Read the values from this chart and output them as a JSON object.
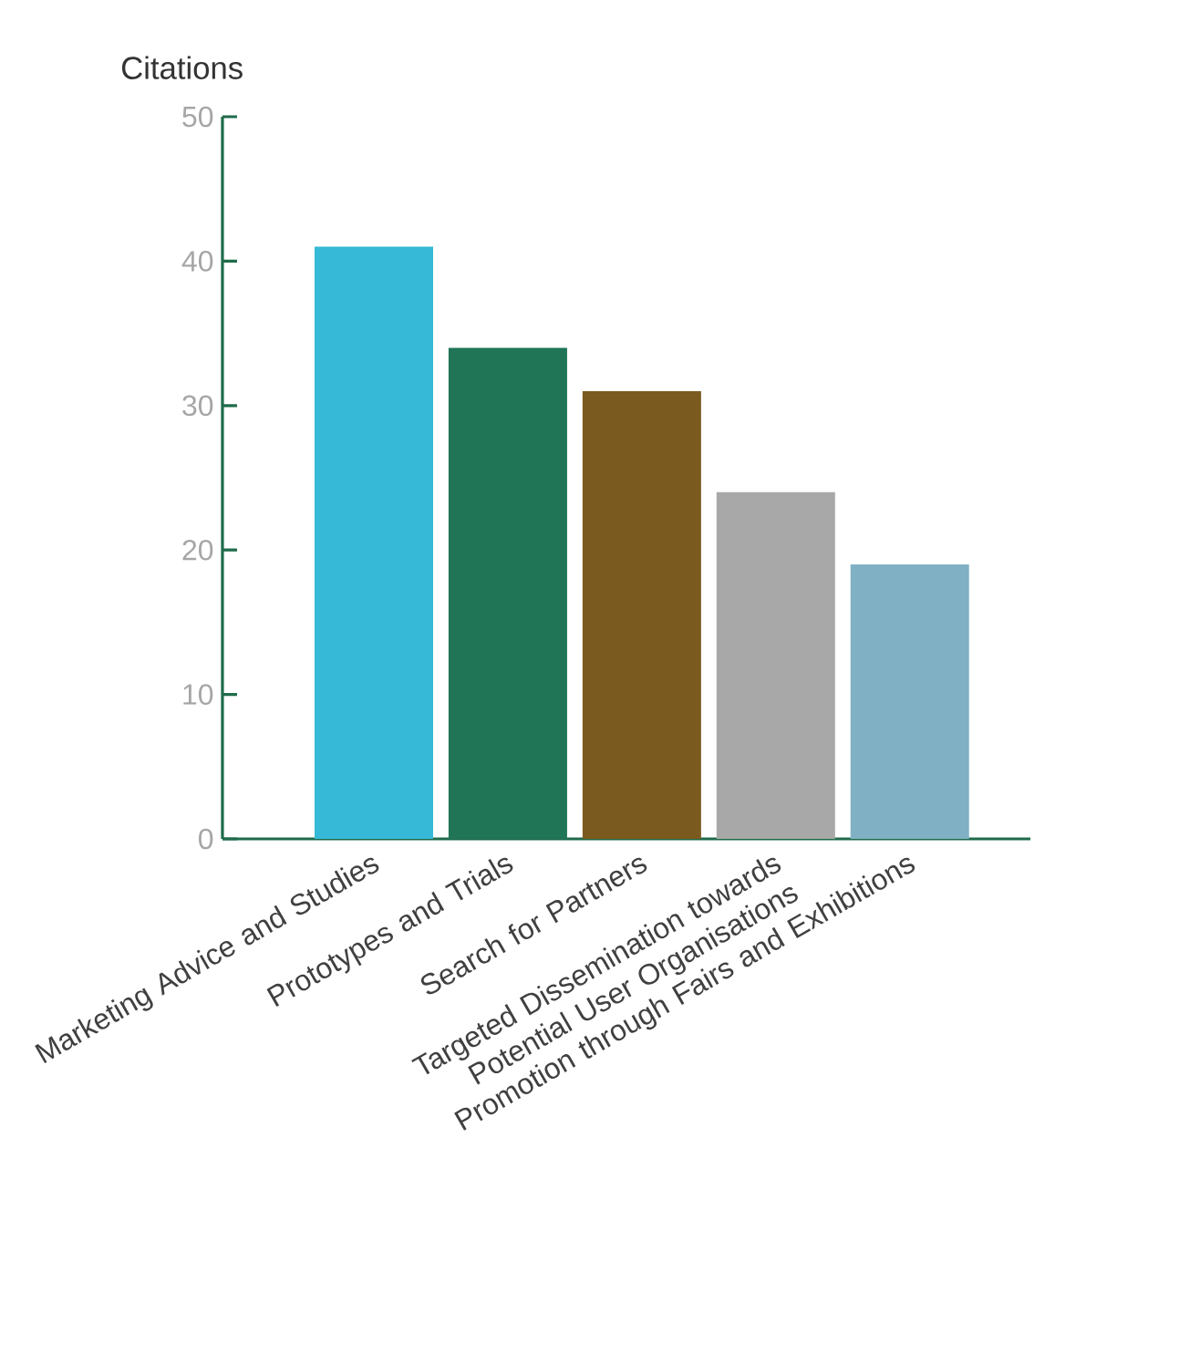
{
  "chart_data": {
    "type": "bar",
    "ylabel": "Citations",
    "categories": [
      "Marketing Advice and Studies",
      "Prototypes and Trials",
      "Search for Partners",
      "Targeted Dissemination towards Potential User Organisations",
      "Promotion through Fairs and Exhibitions"
    ],
    "values": [
      41,
      34,
      31,
      24,
      19
    ],
    "colors": [
      "#35b9d6",
      "#1f7556",
      "#7b5a1f",
      "#a8a8a8",
      "#7fb0c4"
    ],
    "ylim": [
      0,
      50
    ],
    "yticks": [
      0,
      10,
      20,
      30,
      40,
      50
    ],
    "grid": false
  }
}
